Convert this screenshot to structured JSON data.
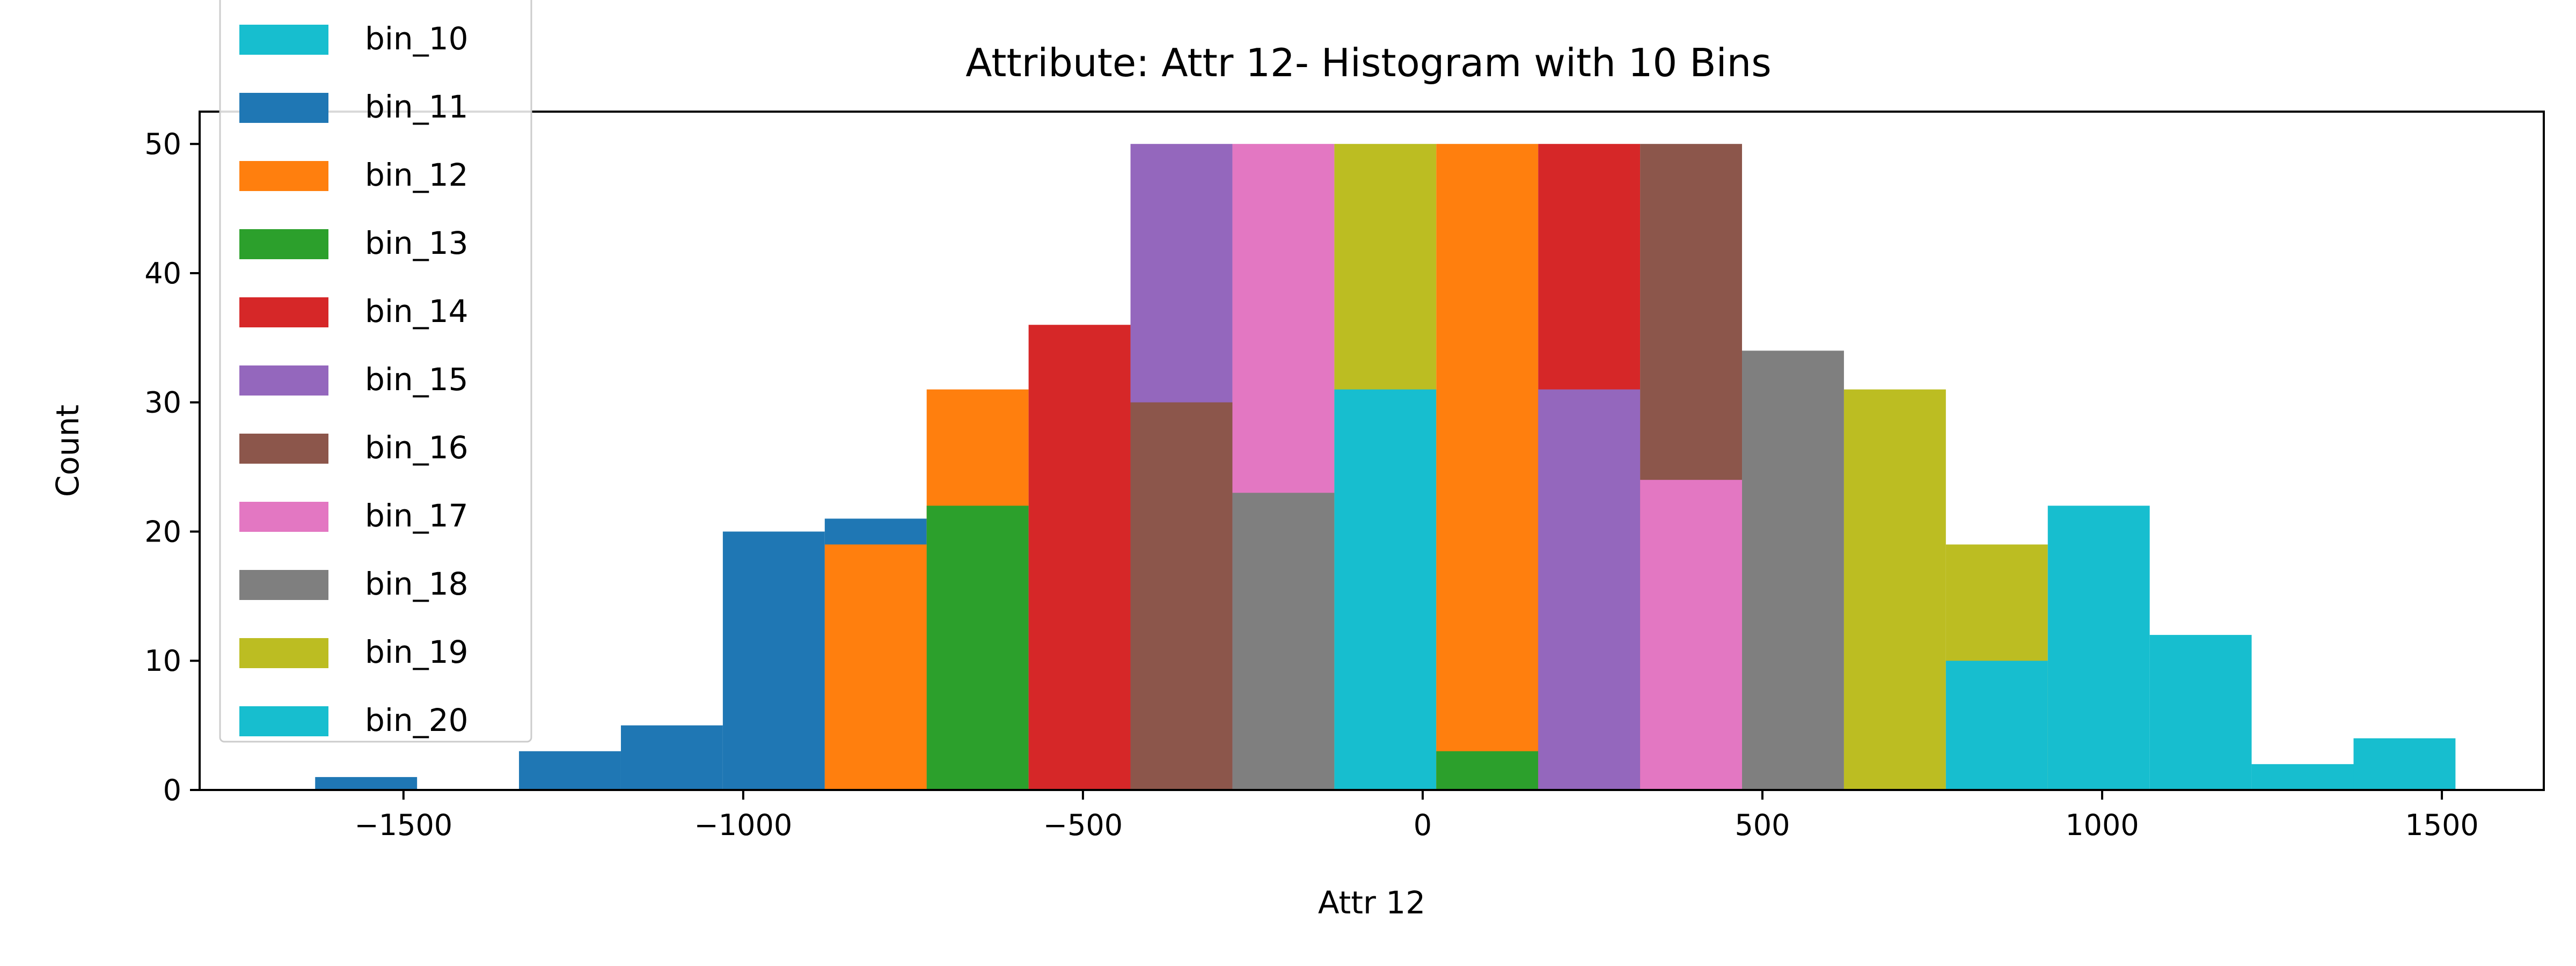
{
  "chart_data": {
    "type": "bar",
    "title": "Attribute: Attr 12- Histogram with 10 Bins",
    "xlabel": "Attr 12",
    "ylabel": "Count",
    "xlim": [
      -1800,
      1650
    ],
    "ylim": [
      0,
      52.5
    ],
    "xticks": [
      -1500,
      -1000,
      -500,
      0,
      500,
      1000,
      1500
    ],
    "xtick_labels": [
      "−1500",
      "−1000",
      "−500",
      "0",
      "500",
      "1000",
      "1500"
    ],
    "yticks": [
      0,
      10,
      20,
      30,
      40,
      50
    ],
    "ytick_labels": [
      "0",
      "10",
      "20",
      "30",
      "40",
      "50"
    ],
    "grid": false,
    "legend_position": "upper-left",
    "series": [
      {
        "name": "bin_10",
        "color": "#17becf",
        "bins": [
          [
            -1650,
            -1500,
            0
          ],
          [
            -1500,
            -1350,
            0
          ],
          [
            -1350,
            -1200,
            0
          ],
          [
            -1200,
            -1050,
            0
          ],
          [
            -1050,
            -900,
            0
          ],
          [
            -900,
            -750,
            0
          ],
          [
            -750,
            -600,
            0
          ],
          [
            -600,
            -450,
            0
          ],
          [
            -450,
            -300,
            0
          ],
          [
            -300,
            -150,
            0
          ]
        ]
      },
      {
        "name": "bin_11",
        "color": "#1f77b4",
        "bins": [
          [
            -1630,
            -1480,
            1
          ],
          [
            -1330,
            -1180,
            3
          ],
          [
            -1180,
            -1030,
            5
          ],
          [
            -1030,
            -880,
            20
          ],
          [
            -880,
            -730,
            21
          ]
        ]
      },
      {
        "name": "bin_12",
        "color": "#ff7f0e",
        "bins": [
          [
            -880,
            -730,
            19
          ],
          [
            -730,
            -580,
            31
          ]
        ]
      },
      {
        "name": "bin_13",
        "color": "#2ca02c",
        "bins": [
          [
            -730,
            -580,
            22
          ]
        ]
      },
      {
        "name": "bin_14",
        "color": "#d62728",
        "bins": [
          [
            -580,
            -430,
            36
          ]
        ]
      },
      {
        "name": "bin_15",
        "color": "#9467bd",
        "bins": [
          [
            -430,
            -280,
            50
          ]
        ]
      },
      {
        "name": "bin_16",
        "color": "#8c564b",
        "bins": [
          [
            -430,
            -280,
            30
          ]
        ]
      },
      {
        "name": "bin_17",
        "color": "#e377c2",
        "bins": [
          [
            -280,
            -130,
            50
          ]
        ]
      },
      {
        "name": "bin_18",
        "color": "#7f7f7f",
        "bins": [
          [
            -280,
            -130,
            23
          ]
        ]
      },
      {
        "name": "bin_19",
        "color": "#bcbd22",
        "bins": [
          [
            -130,
            20,
            50
          ]
        ]
      },
      {
        "name": "bin_20",
        "color": "#17becf",
        "bins": [
          [
            -130,
            20,
            31
          ]
        ]
      },
      {
        "name": "bin_12",
        "color": "#ff7f0e",
        "bins": [
          [
            20,
            170,
            50
          ]
        ]
      },
      {
        "name": "bin_13",
        "color": "#2ca02c",
        "bins": [
          [
            20,
            170,
            3
          ]
        ]
      },
      {
        "name": "bin_14",
        "color": "#d62728",
        "bins": [
          [
            170,
            320,
            50
          ]
        ]
      },
      {
        "name": "bin_15",
        "color": "#9467bd",
        "bins": [
          [
            170,
            320,
            31
          ]
        ]
      },
      {
        "name": "bin_16",
        "color": "#8c564b",
        "bins": [
          [
            320,
            470,
            50
          ]
        ]
      },
      {
        "name": "bin_17",
        "color": "#e377c2",
        "bins": [
          [
            320,
            470,
            24
          ]
        ]
      },
      {
        "name": "bin_18",
        "color": "#7f7f7f",
        "bins": [
          [
            470,
            620,
            34
          ]
        ]
      },
      {
        "name": "bin_19",
        "color": "#bcbd22",
        "bins": [
          [
            620,
            770,
            31
          ],
          [
            770,
            920,
            19
          ]
        ]
      },
      {
        "name": "bin_20",
        "color": "#17becf",
        "bins": [
          [
            770,
            920,
            10
          ],
          [
            920,
            1070,
            22
          ],
          [
            1070,
            1220,
            12
          ],
          [
            1220,
            1370,
            2
          ],
          [
            1370,
            1520,
            4
          ]
        ]
      }
    ],
    "legend": [
      {
        "label": "bin_10",
        "color": "#17becf"
      },
      {
        "label": "bin_11",
        "color": "#1f77b4"
      },
      {
        "label": "bin_12",
        "color": "#ff7f0e"
      },
      {
        "label": "bin_13",
        "color": "#2ca02c"
      },
      {
        "label": "bin_14",
        "color": "#d62728"
      },
      {
        "label": "bin_15",
        "color": "#9467bd"
      },
      {
        "label": "bin_16",
        "color": "#8c564b"
      },
      {
        "label": "bin_17",
        "color": "#e377c2"
      },
      {
        "label": "bin_18",
        "color": "#7f7f7f"
      },
      {
        "label": "bin_19",
        "color": "#bcbd22"
      },
      {
        "label": "bin_20",
        "color": "#17becf"
      }
    ]
  }
}
